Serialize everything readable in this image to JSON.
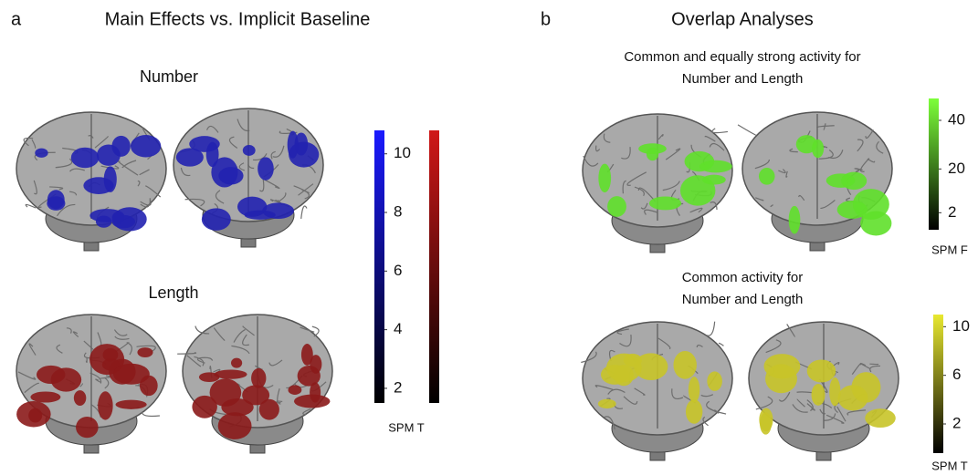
{
  "panels": [
    {
      "letter": "a",
      "title": "Main Effects vs. Implicit Baseline",
      "maps": [
        {
          "lines": [
            "Number"
          ]
        },
        {
          "lines": [
            "Length"
          ]
        }
      ],
      "colorbar": {
        "label": "SPM T",
        "colors": [
          "#1a1aff",
          "#d01818"
        ],
        "lim": [
          1.5,
          10.8
        ],
        "ticks": [
          2,
          4,
          6,
          8,
          10
        ]
      }
    },
    {
      "letter": "b",
      "title": "Overlap Analyses",
      "maps": [
        {
          "lines": [
            "Common and equally strong activity for",
            "Number and Length"
          ],
          "colorbar": {
            "label": "SPM F",
            "colors": [
              "#7dff3a"
            ],
            "lim": [
              -5,
              49
            ],
            "ticks": [
              2,
              20,
              40
            ]
          }
        },
        {
          "lines": [
            "Common activity for",
            "Number and Length"
          ],
          "colorbar": {
            "label": "SPM T",
            "colors": [
              "#e8e830"
            ],
            "lim": [
              -0.4,
              11
            ],
            "ticks": [
              2,
              6,
              10
            ]
          }
        }
      ]
    }
  ]
}
